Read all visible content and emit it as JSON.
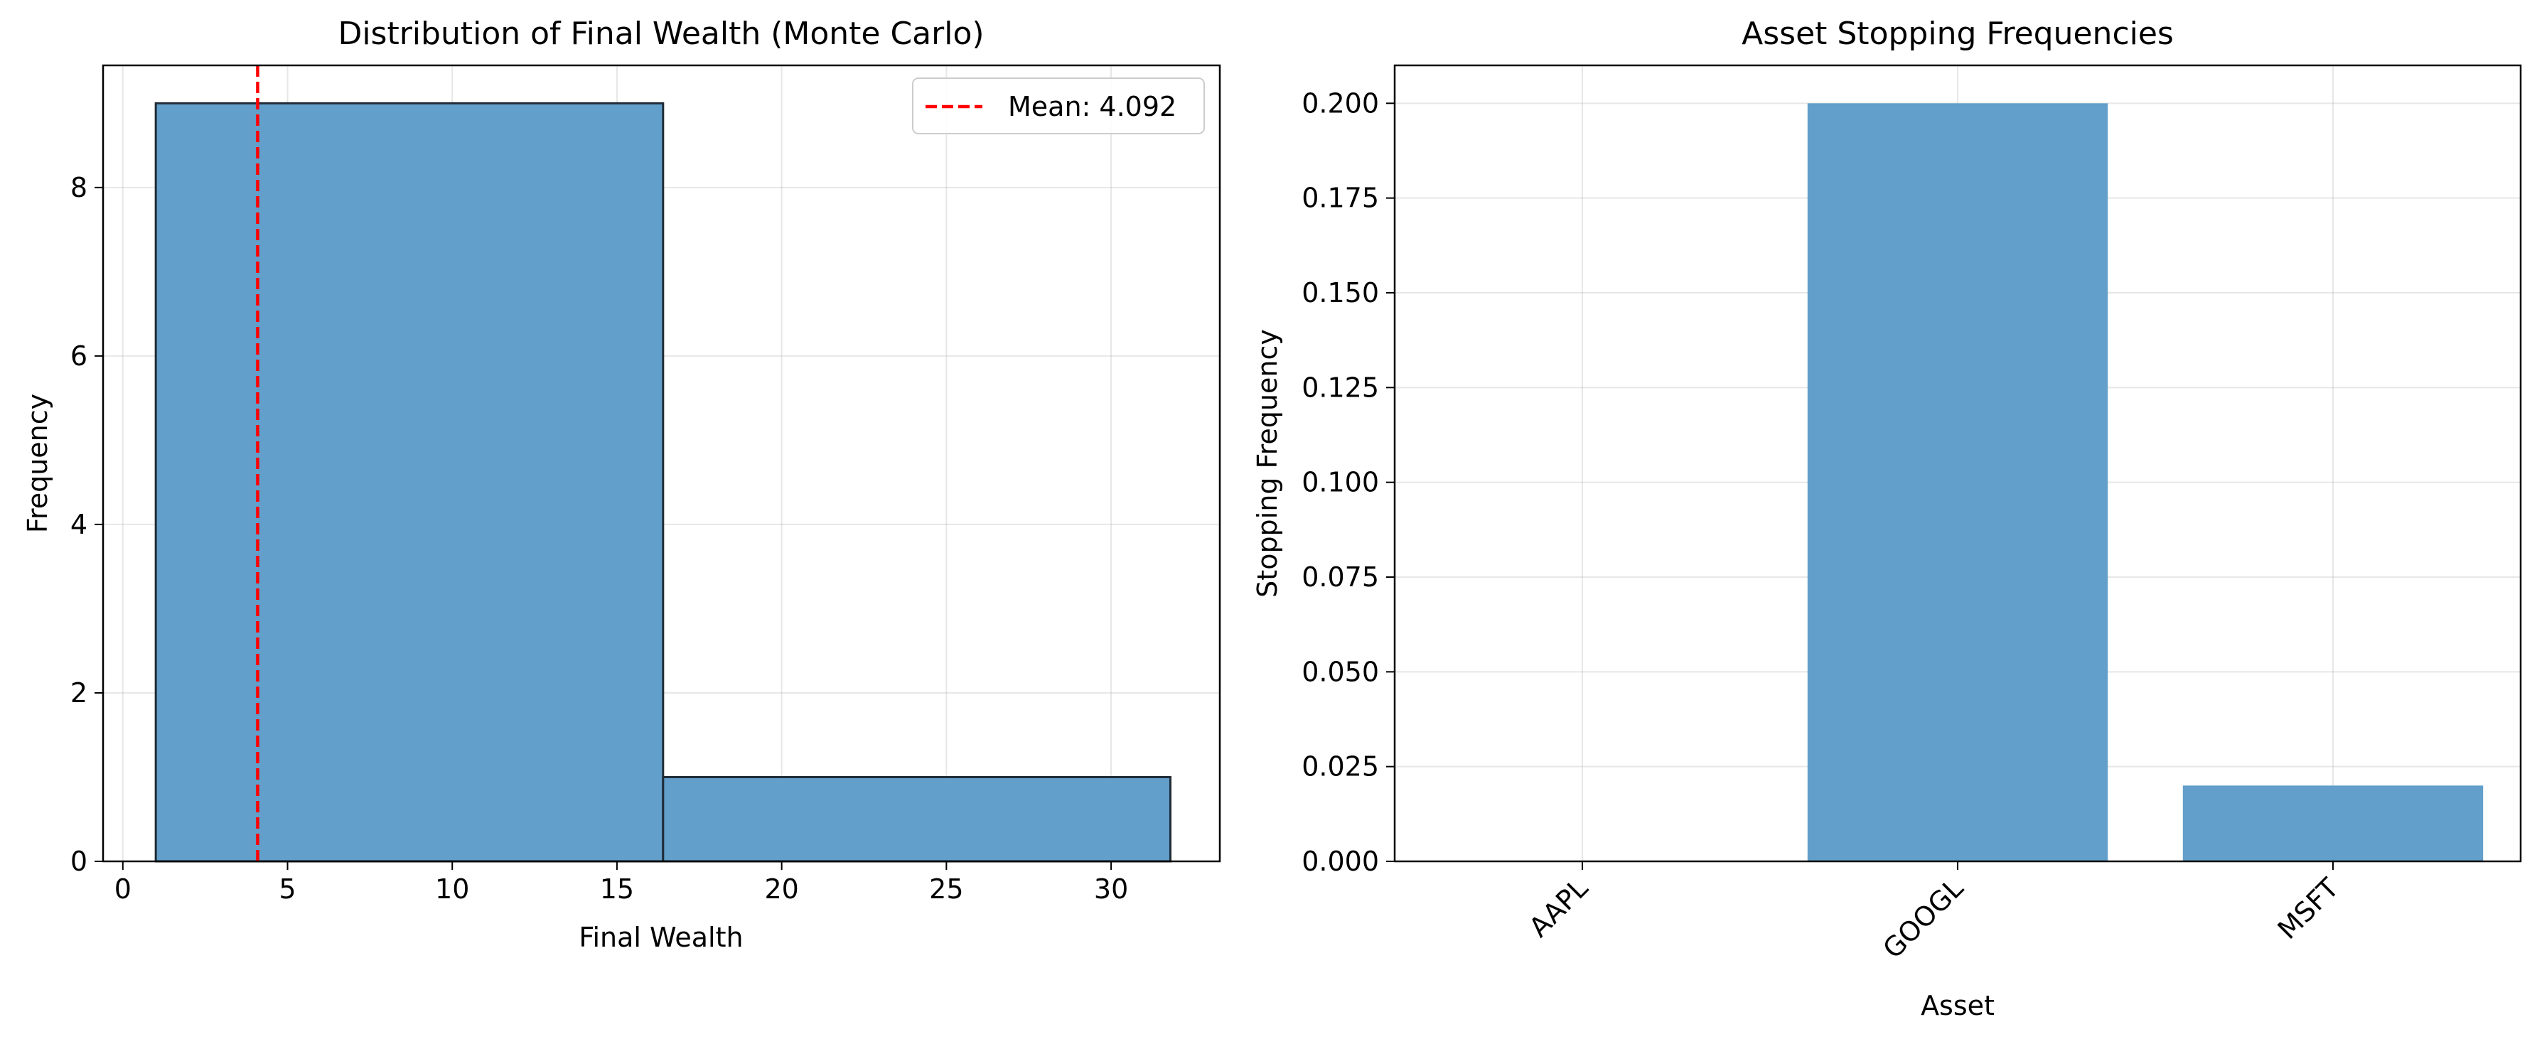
{
  "chart_data": [
    {
      "type": "bar",
      "title": "Distribution of Final Wealth (Monte Carlo)",
      "xlabel": "Final Wealth",
      "ylabel": "Frequency",
      "xlim": [
        -0.6,
        33.3
      ],
      "ylim": [
        0,
        9.45
      ],
      "xticks": [
        0,
        5,
        10,
        15,
        20,
        25,
        30
      ],
      "yticks": [
        0,
        2,
        4,
        6,
        8
      ],
      "grid": true,
      "bins": [
        {
          "x0": 1.0,
          "x1": 16.4,
          "count": 9
        },
        {
          "x0": 16.4,
          "x1": 31.8,
          "count": 1
        }
      ],
      "mean_line": {
        "value": 4.092,
        "label": "Mean: 4.092",
        "color": "#ff0000"
      },
      "bar_color": "#629fca",
      "edge_color": "#1f2b36",
      "legend": "top-right"
    },
    {
      "type": "bar",
      "title": "Asset Stopping Frequencies",
      "xlabel": "Asset",
      "ylabel": "Stopping Frequency",
      "categories": [
        "AAPL",
        "GOOGL",
        "MSFT"
      ],
      "values": [
        0.0,
        0.2,
        0.02
      ],
      "ylim": [
        0,
        0.21
      ],
      "yticks": [
        "0.000",
        "0.025",
        "0.050",
        "0.075",
        "0.100",
        "0.125",
        "0.150",
        "0.175",
        "0.200"
      ],
      "grid": true,
      "bar_color": "#629fca"
    }
  ]
}
